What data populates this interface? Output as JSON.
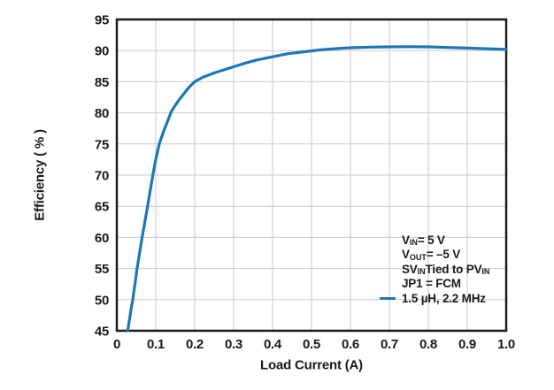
{
  "figure": {
    "background": "#ffffff",
    "accent_blue": "#1e76b4",
    "grid_color": "#c9c9c9",
    "spine_color": "#1a1a1a",
    "text_color": "#1a1a1a"
  },
  "legend": {
    "lines": [
      {
        "swatch": false,
        "segments": [
          {
            "t": "V"
          },
          {
            "s": "IN"
          },
          {
            "t": " = 5 V"
          }
        ]
      },
      {
        "swatch": false,
        "segments": [
          {
            "t": "V"
          },
          {
            "s": "OUT"
          },
          {
            "t": " = –5 V"
          }
        ]
      },
      {
        "swatch": false,
        "segments": [
          {
            "t": "SV"
          },
          {
            "s": "IN"
          },
          {
            "t": " Tied to PV"
          },
          {
            "s": "IN"
          }
        ]
      },
      {
        "swatch": false,
        "segments": [
          {
            "t": "JP1 = FCM"
          }
        ]
      },
      {
        "swatch": true,
        "segments": [
          {
            "t": "1.5 µH, 2.2 MHz"
          }
        ]
      }
    ]
  },
  "chart_data": {
    "type": "line",
    "title": "",
    "xlabel": "Load Current (A)",
    "ylabel": "Efficiency ( % )",
    "xlim": [
      0,
      1.0
    ],
    "ylim": [
      45,
      95
    ],
    "grid": true,
    "legend_position": "lower right",
    "xticks": [
      0,
      0.1,
      0.2,
      0.3,
      0.4,
      0.5,
      0.6,
      0.7,
      0.8,
      0.9,
      1.0
    ],
    "xtick_labels": [
      "0",
      "0.1",
      "0.2",
      "0.3",
      "0.4",
      "0.5",
      "0.6",
      "0.7",
      "0.8",
      "0.9",
      "1.0"
    ],
    "yticks": [
      45,
      50,
      55,
      60,
      65,
      70,
      75,
      80,
      85,
      90,
      95
    ],
    "ytick_labels": [
      "45",
      "50",
      "55",
      "60",
      "65",
      "70",
      "75",
      "80",
      "85",
      "90",
      "95"
    ],
    "series": [
      {
        "name": "1.5 µH, 2.2 MHz",
        "color": "#1e76b4",
        "line_width": 3.2,
        "x": [
          0.028,
          0.032,
          0.036,
          0.041,
          0.046,
          0.052,
          0.058,
          0.065,
          0.072,
          0.079,
          0.085,
          0.0925,
          0.1,
          0.105,
          0.11,
          0.12,
          0.13,
          0.14,
          0.15,
          0.16,
          0.17,
          0.18,
          0.19,
          0.2,
          0.22,
          0.25,
          0.28,
          0.3,
          0.33,
          0.36,
          0.4,
          0.44,
          0.48,
          0.52,
          0.56,
          0.6,
          0.65,
          0.7,
          0.75,
          0.8,
          0.85,
          0.9,
          0.95,
          1.0
        ],
        "y": [
          45.0,
          46.6,
          48.2,
          50.0,
          52.2,
          55.0,
          57.3,
          60.0,
          62.5,
          65.0,
          67.2,
          70.0,
          72.5,
          73.9,
          75.2,
          77.0,
          78.6,
          80.2,
          81.2,
          82.1,
          82.9,
          83.7,
          84.4,
          85.0,
          85.7,
          86.4,
          87.0,
          87.4,
          88.0,
          88.5,
          89.0,
          89.5,
          89.8,
          90.1,
          90.3,
          90.45,
          90.55,
          90.6,
          90.62,
          90.6,
          90.5,
          90.4,
          90.3,
          90.2
        ]
      }
    ]
  }
}
